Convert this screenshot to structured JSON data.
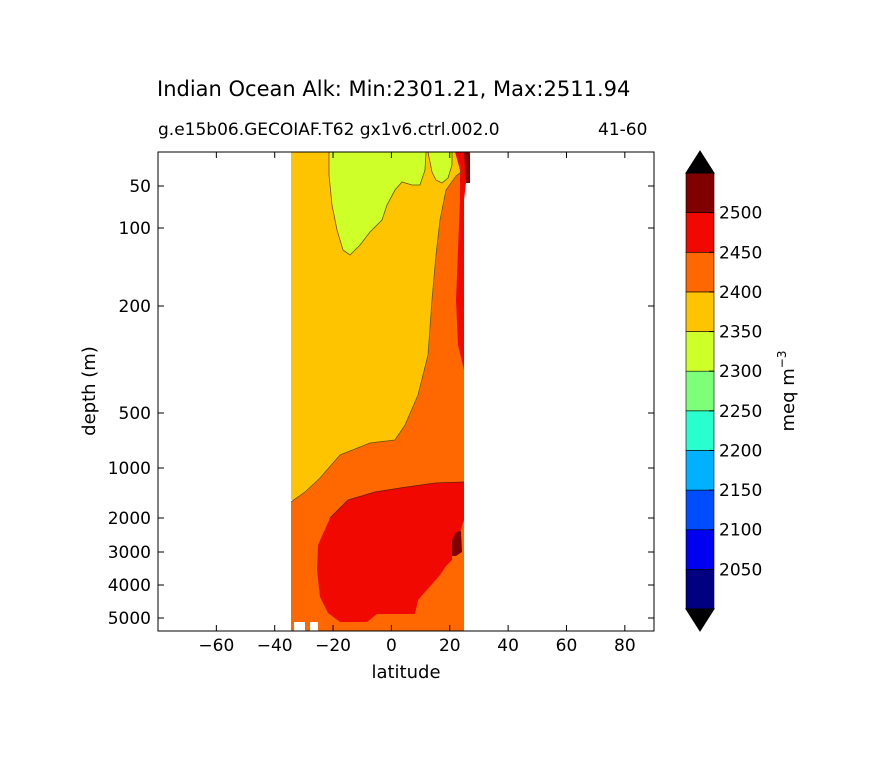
{
  "title": "Indian Ocean Alk: Min:2301.21, Max:2511.94",
  "subtitle": "g.e15b06.GECOIAF.T62 gx1v6.ctrl.002.0",
  "period": "41-60",
  "chart_data": {
    "type": "heatmap",
    "xlabel": "latitude",
    "ylabel": "depth (m)",
    "xlim": [
      -80,
      90
    ],
    "x_ticks": [
      "−60",
      "−40",
      "−20",
      "0",
      "20",
      "40",
      "60",
      "80"
    ],
    "x_tick_values": [
      -60,
      -40,
      -20,
      0,
      20,
      40,
      60,
      80
    ],
    "y_ticks": [
      "50",
      "100",
      "200",
      "500",
      "1000",
      "2000",
      "3000",
      "4000",
      "5000"
    ],
    "y_tick_values": [
      50,
      100,
      200,
      500,
      1000,
      2000,
      3000,
      4000,
      5000
    ],
    "colorbar": {
      "label": "meq m",
      "label_sup": "−3",
      "levels": [
        2000,
        2050,
        2100,
        2150,
        2200,
        2250,
        2300,
        2350,
        2400,
        2450,
        2500,
        2550
      ],
      "tick_labels": [
        "2050",
        "2100",
        "2150",
        "2200",
        "2250",
        "2300",
        "2350",
        "2400",
        "2450",
        "2500"
      ],
      "tick_values": [
        2050,
        2100,
        2150,
        2200,
        2250,
        2300,
        2350,
        2400,
        2450,
        2500
      ],
      "colors": [
        "#000080",
        "#0000f1",
        "#004dff",
        "#00b1ff",
        "#29ffce",
        "#7dff7a",
        "#ceff29",
        "#ffc400",
        "#ff6800",
        "#f10800",
        "#800000"
      ],
      "extend": "both",
      "extend_min_color": "#000000",
      "extend_max_color": "#000000"
    }
  }
}
